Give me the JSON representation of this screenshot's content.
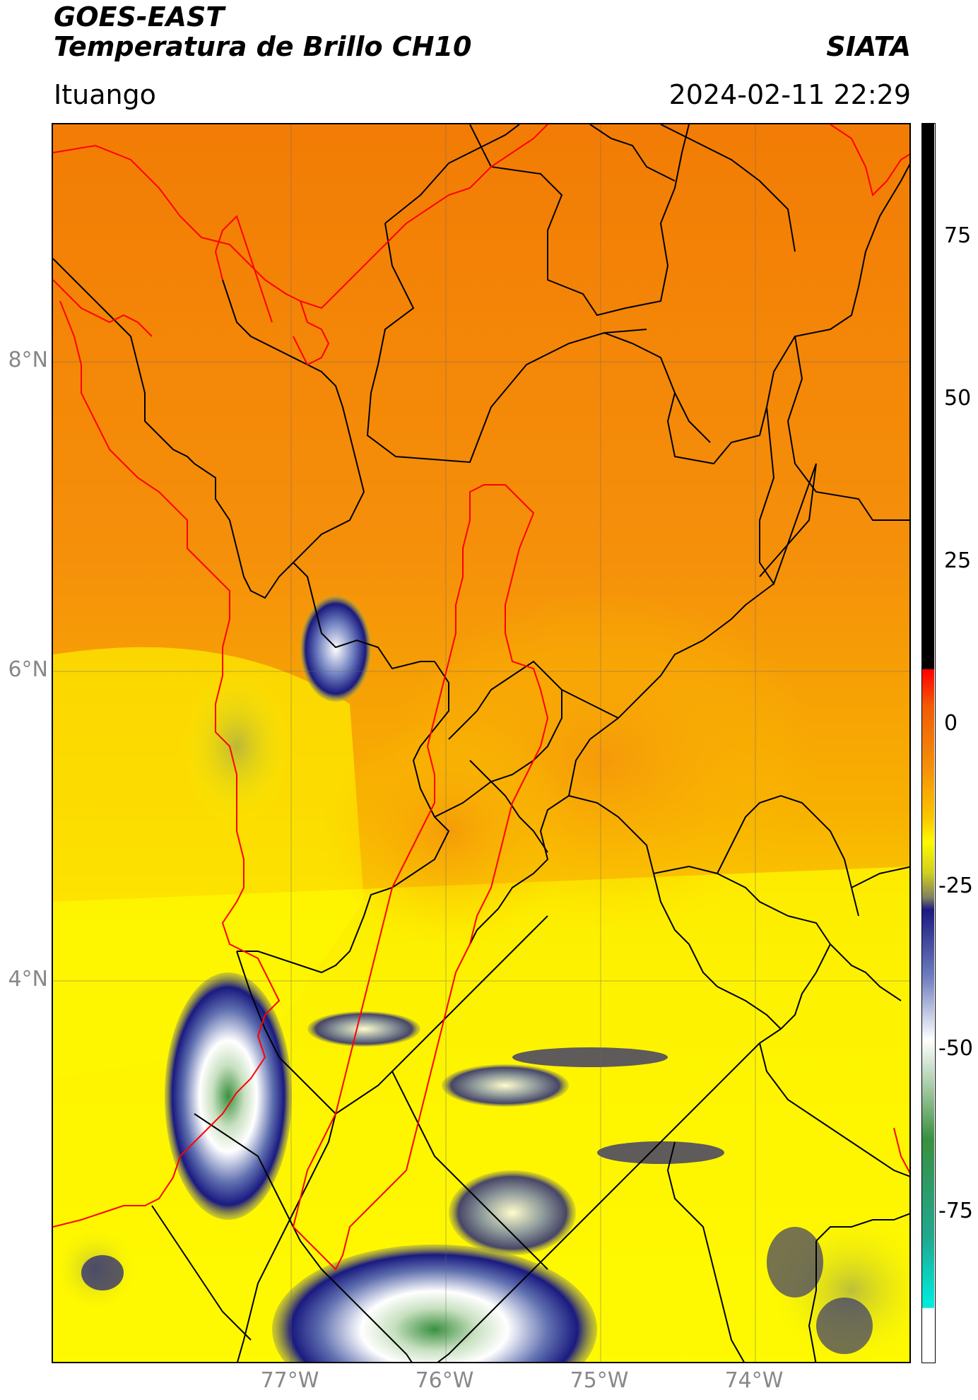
{
  "header": {
    "title_line1": "GOES-EAST",
    "title_line2": "Temperatura de Brillo CH10",
    "organization": "SIATA",
    "location": "Ituango",
    "datetime": "2024-02-11 22:29"
  },
  "map": {
    "lat_labels": [
      "8°N",
      "6°N",
      "4°N"
    ],
    "lon_labels": [
      "77°W",
      "76°W",
      "75°W",
      "74°W"
    ],
    "colors": {
      "background_orange": "#f5900a",
      "dark_orange": "#f07a05",
      "yellow": "#fef900",
      "olive": "#b0b040",
      "navy": "#1a1a80",
      "pale": "#d8dcec",
      "green": "#3a9040",
      "coast_red": "#ff0000",
      "border_black": "#000000"
    }
  },
  "colorbar": {
    "ticks": [
      "75",
      "50",
      "25",
      "0",
      "-25",
      "-50",
      "-75"
    ],
    "colors": [
      "#000000",
      "#ff0000",
      "#f5900a",
      "#fef900",
      "#1a1a80",
      "#ffffff",
      "#3a9040",
      "#00e8d8"
    ]
  }
}
